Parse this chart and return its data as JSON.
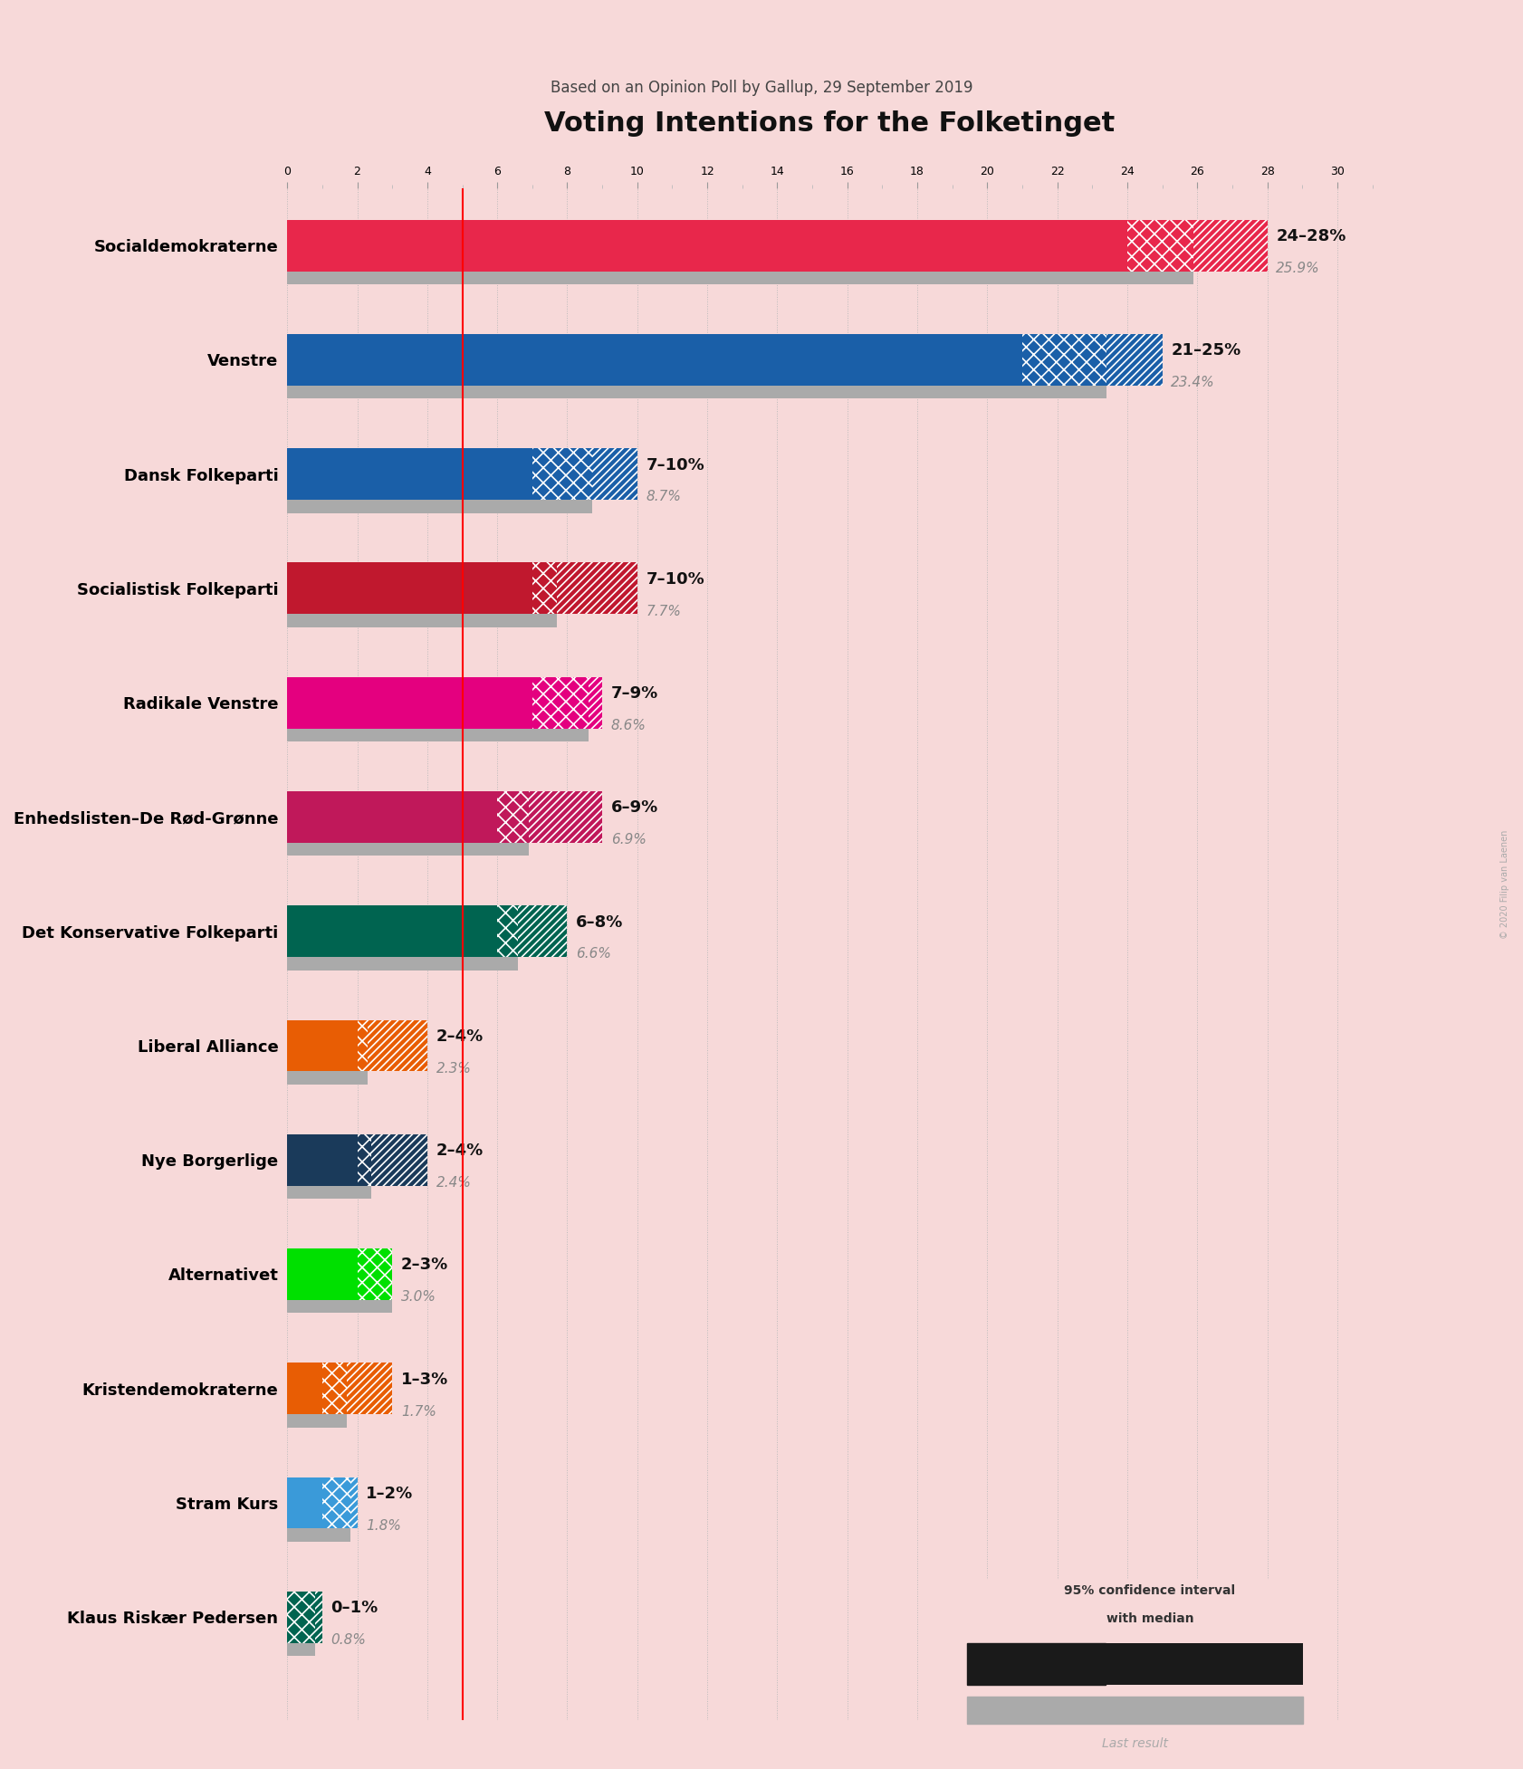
{
  "title": "Voting Intentions for the Folketinget",
  "subtitle": "Based on an Opinion Poll by Gallup, 29 September 2019",
  "background_color": "#f7d9d9",
  "parties": [
    {
      "name": "Socialdemokraterne",
      "color": "#e8274b",
      "ci_low": 24.0,
      "median": 25.9,
      "ci_high": 28.0,
      "last": 25.9,
      "label": "24–28%",
      "sub": "25.9%"
    },
    {
      "name": "Venstre",
      "color": "#1a5fa8",
      "ci_low": 21.0,
      "median": 23.4,
      "ci_high": 25.0,
      "last": 23.4,
      "label": "21–25%",
      "sub": "23.4%"
    },
    {
      "name": "Dansk Folkeparti",
      "color": "#1a5fa8",
      "ci_low": 7.0,
      "median": 8.7,
      "ci_high": 10.0,
      "last": 8.7,
      "label": "7–10%",
      "sub": "8.7%"
    },
    {
      "name": "Socialistisk Folkeparti",
      "color": "#c0182e",
      "ci_low": 7.0,
      "median": 7.7,
      "ci_high": 10.0,
      "last": 7.7,
      "label": "7–10%",
      "sub": "7.7%"
    },
    {
      "name": "Radikale Venstre",
      "color": "#e4007f",
      "ci_low": 7.0,
      "median": 8.6,
      "ci_high": 9.0,
      "last": 8.6,
      "label": "7–9%",
      "sub": "8.6%"
    },
    {
      "name": "Enhedslisten–De Rød-Grønne",
      "color": "#c0185a",
      "ci_low": 6.0,
      "median": 6.9,
      "ci_high": 9.0,
      "last": 6.9,
      "label": "6–9%",
      "sub": "6.9%"
    },
    {
      "name": "Det Konservative Folkeparti",
      "color": "#006450",
      "ci_low": 6.0,
      "median": 6.6,
      "ci_high": 8.0,
      "last": 6.6,
      "label": "6–8%",
      "sub": "6.6%"
    },
    {
      "name": "Liberal Alliance",
      "color": "#e85d04",
      "ci_low": 2.0,
      "median": 2.3,
      "ci_high": 4.0,
      "last": 2.3,
      "label": "2–4%",
      "sub": "2.3%"
    },
    {
      "name": "Nye Borgerlige",
      "color": "#1a3a5a",
      "ci_low": 2.0,
      "median": 2.4,
      "ci_high": 4.0,
      "last": 2.4,
      "label": "2–4%",
      "sub": "2.4%"
    },
    {
      "name": "Alternativet",
      "color": "#00e000",
      "ci_low": 2.0,
      "median": 3.0,
      "ci_high": 3.0,
      "last": 3.0,
      "label": "2–3%",
      "sub": "3.0%"
    },
    {
      "name": "Kristendemokraterne",
      "color": "#e85d04",
      "ci_low": 1.0,
      "median": 1.7,
      "ci_high": 3.0,
      "last": 1.7,
      "label": "1–3%",
      "sub": "1.7%"
    },
    {
      "name": "Stram Kurs",
      "color": "#3a9ad9",
      "ci_low": 1.0,
      "median": 1.8,
      "ci_high": 2.0,
      "last": 1.8,
      "label": "1–2%",
      "sub": "1.8%"
    },
    {
      "name": "Klaus Riskær Pedersen",
      "color": "#006450",
      "ci_low": 0.0,
      "median": 0.8,
      "ci_high": 1.0,
      "last": 0.8,
      "label": "0–1%",
      "sub": "0.8%"
    }
  ],
  "xlim": [
    0,
    31
  ],
  "xticks": [
    0,
    2,
    4,
    6,
    8,
    10,
    12,
    14,
    16,
    18,
    20,
    22,
    24,
    26,
    28,
    30
  ],
  "red_line_x": 5.0,
  "bar_height": 0.45,
  "last_bar_height": 0.14,
  "hatch_cross": "xx",
  "hatch_diag": "////",
  "copyright": "© 2020 Filip van Laenen"
}
